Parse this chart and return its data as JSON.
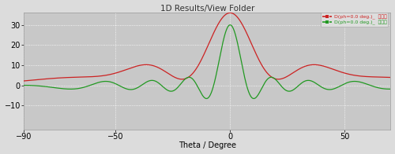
{
  "title": "1D Results/View Folder",
  "xlabel": "Theta / Degree",
  "xlim": [
    -90,
    70
  ],
  "ylim": [
    -22,
    36
  ],
  "yticks": [
    -10,
    0,
    10,
    20,
    30
  ],
  "xticks": [
    -90,
    -50,
    0,
    50
  ],
  "background_color": "#dcdcdc",
  "plot_bg_color": "#c8c8c8",
  "grid_color": "#ffffff",
  "red_label": "D(ph=0.0 deg.)_  天线数",
  "green_label": "D(ph=0.0 deg.)_  天线数",
  "red_color": "#cc2222",
  "green_color": "#229922",
  "title_fontsize": 7.5,
  "label_fontsize": 7,
  "tick_fontsize": 7
}
